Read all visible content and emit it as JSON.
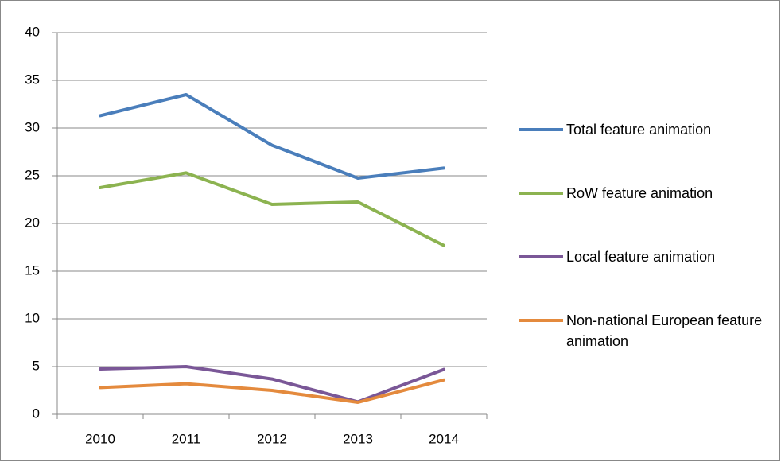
{
  "chart_data": {
    "type": "line",
    "categories": [
      "2010",
      "2011",
      "2012",
      "2013",
      "2014"
    ],
    "series": [
      {
        "name": "Total feature animation",
        "color": "#4a7ebb",
        "values": [
          31.3,
          33.5,
          28.2,
          24.75,
          25.8
        ]
      },
      {
        "name": "RoW feature animation",
        "color": "#8cb350",
        "values": [
          23.75,
          25.3,
          22.0,
          22.25,
          17.7
        ]
      },
      {
        "name": "Local feature animation",
        "color": "#7a5797",
        "values": [
          4.75,
          5.0,
          3.7,
          1.3,
          4.7
        ]
      },
      {
        "name": "Non-national European feature animation",
        "color": "#e48a3d",
        "values": [
          2.8,
          3.2,
          2.5,
          1.25,
          3.6
        ]
      }
    ],
    "ylim": [
      0,
      40
    ],
    "yticks": [
      0,
      5,
      10,
      15,
      20,
      25,
      30,
      35,
      40
    ],
    "grid": true,
    "legend": "right"
  }
}
